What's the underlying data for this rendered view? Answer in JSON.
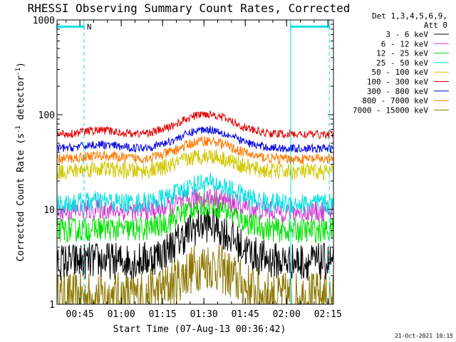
{
  "chart_data": {
    "type": "line",
    "title": "RHESSI Observing Summary Count Rates, Corrected",
    "xlabel": "Start Time (07-Aug-13 00:36:42)",
    "ylabel_main": "Corrected Count Rate (s",
    "ylabel_sup1": "-1",
    "ylabel_mid": " detector",
    "ylabel_sup2": "-1",
    "ylabel_end": ")",
    "yscale": "log",
    "ylim": [
      1,
      1000
    ],
    "y_ticks": [
      "1",
      "10",
      "100",
      "1000"
    ],
    "x_start_min": 36.7,
    "x_end_min": 137,
    "x_ticks": [
      {
        "label": "00:45",
        "t": 45
      },
      {
        "label": "01:00",
        "t": 60
      },
      {
        "label": "01:15",
        "t": 75
      },
      {
        "label": "01:30",
        "t": 90
      },
      {
        "label": "01:45",
        "t": 105
      },
      {
        "label": "02:00",
        "t": 120
      },
      {
        "label": "02:15",
        "t": 135
      }
    ],
    "legend_header": [
      "Det 1,3,4,5,6,9,",
      "Att 0"
    ],
    "legend_position": "right",
    "series": [
      {
        "name": "3 - 6 keV",
        "color": "#000000",
        "base": 2.8,
        "peak": 7.0,
        "noise": 0.09
      },
      {
        "name": "6 - 12 keV",
        "color": "#d23cd2",
        "base": 9.5,
        "peak": 13.5,
        "noise": 0.05
      },
      {
        "name": "12 - 25 keV",
        "color": "#00e000",
        "base": 6.0,
        "peak": 11.5,
        "noise": 0.06
      },
      {
        "name": "25 - 50 keV",
        "color": "#00e0e0",
        "base": 11.5,
        "peak": 19.0,
        "noise": 0.05
      },
      {
        "name": "50 - 100 keV",
        "color": "#d2c800",
        "base": 25.0,
        "peak": 37.0,
        "noise": 0.04
      },
      {
        "name": "100 - 300 keV",
        "color": "#e00000",
        "base": 62.0,
        "peak": 102.0,
        "noise": 0.02
      },
      {
        "name": "300 - 800 keV",
        "color": "#0000e0",
        "base": 44.0,
        "peak": 70.0,
        "noise": 0.02
      },
      {
        "name": "800 - 7000 keV",
        "color": "#ff7800",
        "base": 34.0,
        "peak": 53.0,
        "noise": 0.025
      },
      {
        "name": "7000 - 15000 keV",
        "color": "#8c7800",
        "base": 1.2,
        "peak": 2.6,
        "noise": 0.12
      }
    ],
    "annotations": {
      "flag_label": "N",
      "flag_color": "#00e0e0",
      "saa_flag_level": 850,
      "flag_segments": [
        [
          36.7,
          46.5
        ],
        [
          121.5,
          135.5
        ]
      ],
      "vlines_dashed": [
        46.5,
        135.5
      ],
      "vlines_solid": [
        121.5
      ]
    }
  },
  "footer": {
    "timestamp": "21-Oct-2021 10:15"
  }
}
